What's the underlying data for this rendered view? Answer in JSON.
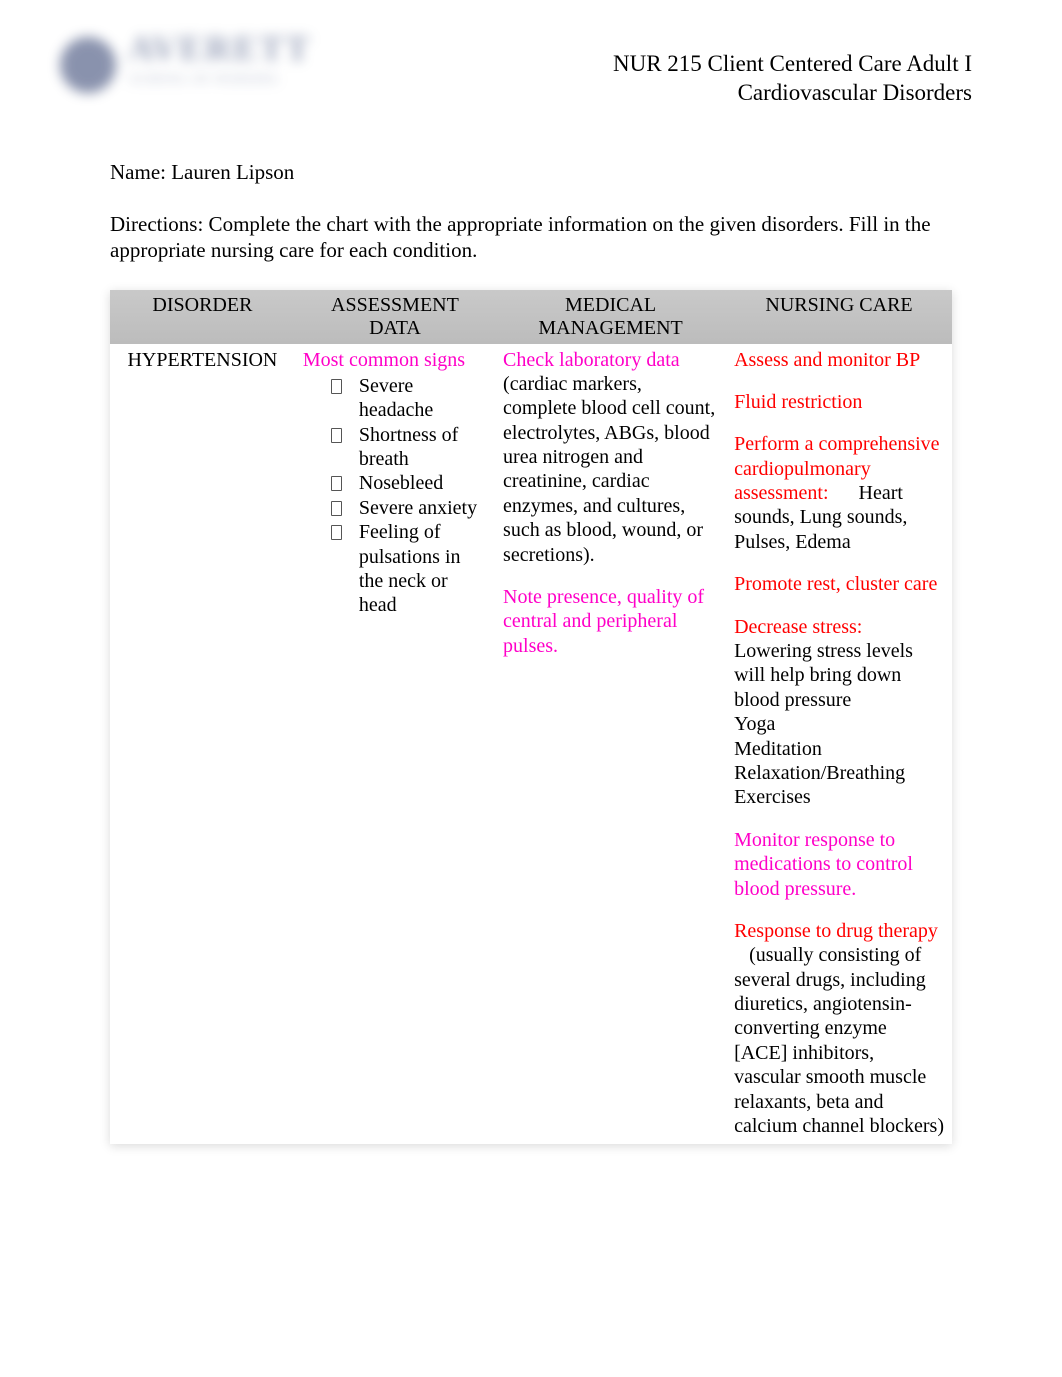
{
  "header": {
    "logo_main": "AVERETT",
    "logo_sub": "SCHOOL OF NURSING",
    "course_line1": "NUR 215 Client Centered Care Adult I",
    "course_line2": "Cardiovascular Disorders"
  },
  "name_label": "Name:",
  "name_value": "Lauren Lipson",
  "directions": "Directions: Complete the chart with the appropriate information on the given disorders. Fill in the appropriate nursing care for each condition.",
  "table": {
    "headers": {
      "c1": "DISORDER",
      "c2_l1": "ASSESSMENT",
      "c2_l2": "DATA",
      "c3_l1": "MEDICAL",
      "c3_l2": "MANAGEMENT",
      "c4": "NURSING CARE"
    },
    "row": {
      "disorder": "HYPERTENSION",
      "assessment": {
        "lead": "Most common signs",
        "items": [
          "Severe headache",
          "Shortness of breath",
          "Nosebleed",
          "Severe anxiety",
          "Feeling of pulsations in the neck or head"
        ]
      },
      "medical": {
        "p1_lead": "Check laboratory data",
        "p1_rest": " (cardiac markers, complete blood cell count, electrolytes, ABGs, blood urea nitrogen and creatinine, cardiac enzymes, and cultures, such as blood, wound, or secretions).",
        "p2": "Note presence, quality of central and peripheral pulses."
      },
      "nursing": {
        "b1": "Assess and monitor BP",
        "b2": "Fluid restriction",
        "b3_lead": "Perform a comprehensive cardiopulmonary assessment:",
        "b3_rest": "Heart sounds, Lung sounds, Pulses, Edema",
        "b4": "Promote rest, cluster care",
        "b5_lead": "Decrease stress:",
        "b5_rest": "Lowering stress levels will help bring down blood pressure\nYoga\nMeditation\nRelaxation/Breathing Exercises",
        "b6": "Monitor response to medications to control blood pressure.",
        "b7_lead": "Response to drug therapy",
        "b7_rest": "(usually consisting of several drugs, including diuretics, angiotensin-converting enzyme [ACE] inhibitors, vascular smooth muscle relaxants, beta and calcium channel blockers)"
      }
    }
  },
  "colors": {
    "magenta": "#ff00c8",
    "red": "#ff0000",
    "black": "#000000",
    "header_bg": "#c0c0c0",
    "logo_blue": "#2a3a6b"
  }
}
